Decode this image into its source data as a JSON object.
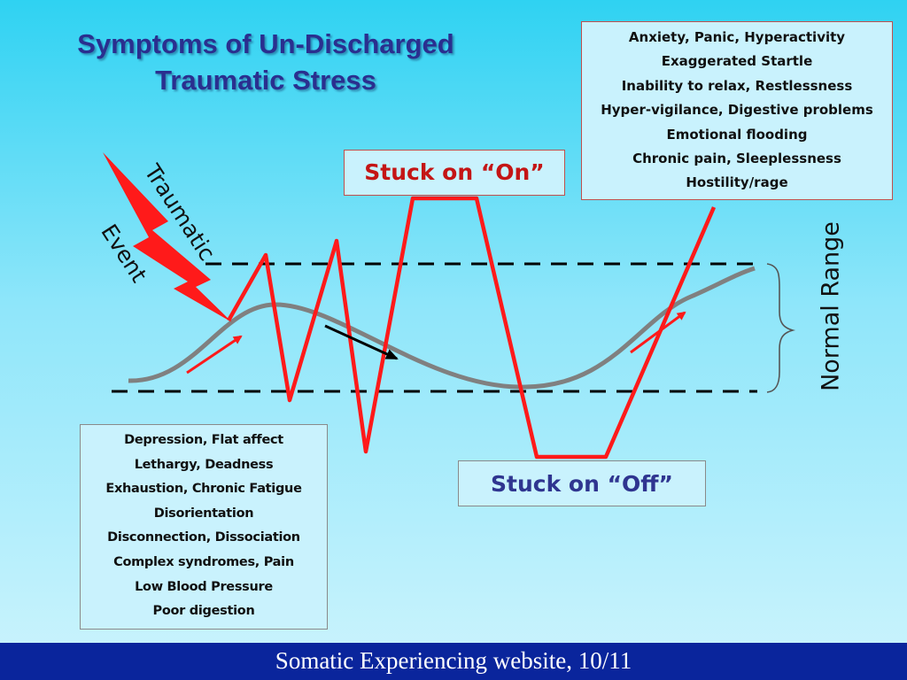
{
  "slide": {
    "title_lines": [
      "Symptoms of Un-Discharged",
      "Traumatic Stress"
    ],
    "traumatic_event_label": [
      "Traumatic",
      "Event"
    ],
    "stuck_on_label": "Stuck on “On”",
    "stuck_off_label": "Stuck on “Off”",
    "normal_range_label": "Normal Range",
    "hyperarousal_symptoms": [
      "Anxiety, Panic, Hyperactivity",
      "Exaggerated Startle",
      "Inability to relax, Restlessness",
      "Hyper-vigilance, Digestive problems",
      "Emotional flooding",
      "Chronic pain, Sleeplessness",
      "Hostility/rage"
    ],
    "hypoarousal_symptoms": [
      "Depression, Flat affect",
      "Lethargy, Deadness",
      "Exhaustion, Chronic Fatigue",
      "Disorientation",
      "Disconnection, Dissociation",
      "Complex syndromes, Pain",
      "Low Blood Pressure",
      "Poor digestion"
    ],
    "footer": "Somatic Experiencing website, 10/11"
  },
  "colors": {
    "title": "#2a2f8f",
    "activation_line": "#ff1a1a",
    "normal_wave": "#808080",
    "range_lines": "#000000",
    "stuck_on_text": "#c41515",
    "stuck_off_text": "#2f3590",
    "footer_bg": "#0a259c",
    "footer_text": "#ffffff"
  }
}
